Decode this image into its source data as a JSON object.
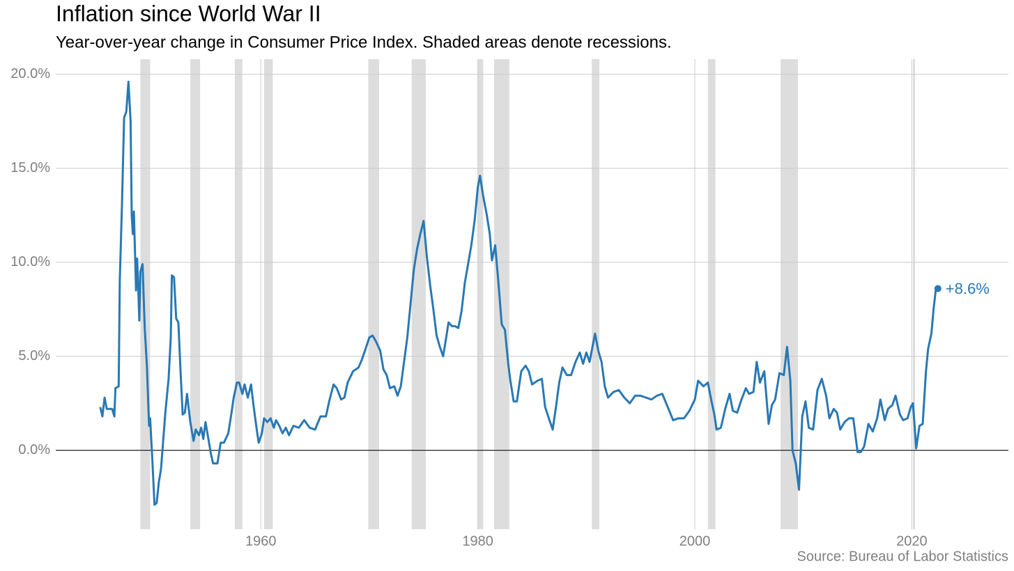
{
  "chart_data": {
    "type": "line",
    "title": "Inflation since World War II",
    "subtitle": "Year-over-year change in Consumer Price Index. Shaded areas denote recessions.",
    "source": "Source: Bureau of Labor Statistics",
    "annotation": "+8.6%",
    "color": "#2878b4",
    "recession_color": "#dddddd",
    "grid": true,
    "xlim": [
      1941.1,
      2028.9
    ],
    "ylim": [
      -4.2,
      20.8
    ],
    "xticks": [
      1960,
      1980,
      2000,
      2020
    ],
    "yticks": [
      {
        "value": 0,
        "label": "0.0%"
      },
      {
        "value": 5,
        "label": "5.0%"
      },
      {
        "value": 10,
        "label": "10.0%"
      },
      {
        "value": 15,
        "label": "15.0%"
      },
      {
        "value": 20,
        "label": "20.0%"
      }
    ],
    "recessions": [
      [
        1948.9,
        1949.8
      ],
      [
        1953.5,
        1954.4
      ],
      [
        1957.6,
        1958.3
      ],
      [
        1960.3,
        1961.1
      ],
      [
        1969.9,
        1970.9
      ],
      [
        1973.9,
        1975.2
      ],
      [
        1980.0,
        1980.5
      ],
      [
        1981.5,
        1982.9
      ],
      [
        1990.5,
        1991.2
      ],
      [
        2001.2,
        2001.9
      ],
      [
        2007.9,
        2009.5
      ],
      [
        2020.1,
        2020.3
      ]
    ],
    "x": [
      1945.2,
      1945.4,
      1945.6,
      1945.8,
      1946.0,
      1946.3,
      1946.5,
      1946.6,
      1946.9,
      1947.0,
      1947.2,
      1947.4,
      1947.6,
      1947.8,
      1948.0,
      1948.1,
      1948.2,
      1948.3,
      1948.5,
      1948.6,
      1948.7,
      1948.8,
      1948.9,
      1949.1,
      1949.3,
      1949.5,
      1949.7,
      1949.8,
      1950.0,
      1950.2,
      1950.4,
      1950.6,
      1950.8,
      1951.0,
      1951.2,
      1951.5,
      1951.7,
      1951.8,
      1952.0,
      1952.2,
      1952.4,
      1952.6,
      1952.8,
      1953.0,
      1953.2,
      1953.5,
      1953.8,
      1954.0,
      1954.3,
      1954.5,
      1954.7,
      1954.9,
      1955.2,
      1955.4,
      1955.6,
      1956.0,
      1956.3,
      1956.6,
      1957.0,
      1957.3,
      1957.5,
      1957.8,
      1958.0,
      1958.3,
      1958.5,
      1958.8,
      1959.1,
      1959.3,
      1959.6,
      1959.8,
      1960.1,
      1960.3,
      1960.6,
      1960.9,
      1961.2,
      1961.4,
      1961.7,
      1962.0,
      1962.3,
      1962.6,
      1963.0,
      1963.5,
      1964.0,
      1964.5,
      1965.0,
      1965.5,
      1966.0,
      1966.3,
      1966.7,
      1967.0,
      1967.4,
      1967.7,
      1968.0,
      1968.5,
      1969.0,
      1969.3,
      1969.6,
      1970.0,
      1970.3,
      1970.6,
      1971.0,
      1971.3,
      1971.6,
      1971.9,
      1972.3,
      1972.6,
      1972.9,
      1973.2,
      1973.5,
      1973.8,
      1974.1,
      1974.4,
      1974.7,
      1975.0,
      1975.3,
      1975.6,
      1975.9,
      1976.2,
      1976.5,
      1976.8,
      1977.0,
      1977.3,
      1977.6,
      1977.9,
      1978.2,
      1978.5,
      1978.8,
      1979.1,
      1979.4,
      1979.7,
      1980.0,
      1980.2,
      1980.5,
      1980.8,
      1981.1,
      1981.3,
      1981.6,
      1981.9,
      1982.2,
      1982.5,
      1982.8,
      1983.0,
      1983.3,
      1983.6,
      1984.0,
      1984.4,
      1984.7,
      1985.0,
      1985.5,
      1985.9,
      1986.2,
      1986.6,
      1986.9,
      1987.2,
      1987.5,
      1987.8,
      1988.2,
      1988.6,
      1989.0,
      1989.4,
      1989.7,
      1990.0,
      1990.3,
      1990.6,
      1990.8,
      1991.1,
      1991.4,
      1991.7,
      1992.0,
      1992.5,
      1993.0,
      1993.5,
      1994.0,
      1994.5,
      1995.0,
      1995.5,
      1996.0,
      1996.5,
      1997.0,
      1997.5,
      1998.0,
      1998.5,
      1999.0,
      1999.5,
      2000.0,
      2000.3,
      2000.8,
      2001.2,
      2001.5,
      2001.8,
      2002.0,
      2002.4,
      2002.8,
      2003.2,
      2003.5,
      2003.9,
      2004.3,
      2004.7,
      2005.0,
      2005.4,
      2005.7,
      2006.0,
      2006.4,
      2006.8,
      2007.1,
      2007.4,
      2007.8,
      2008.2,
      2008.5,
      2008.8,
      2009.0,
      2009.3,
      2009.6,
      2009.9,
      2010.2,
      2010.5,
      2010.9,
      2011.3,
      2011.7,
      2012.1,
      2012.4,
      2012.8,
      2013.1,
      2013.4,
      2013.8,
      2014.2,
      2014.6,
      2015.0,
      2015.3,
      2015.6,
      2016.0,
      2016.4,
      2016.8,
      2017.1,
      2017.5,
      2017.8,
      2018.2,
      2018.5,
      2018.9,
      2019.2,
      2019.6,
      2019.9,
      2020.1,
      2020.4,
      2020.7,
      2021.0,
      2021.3,
      2021.5,
      2021.8,
      2022.0,
      2022.2,
      2022.4
    ],
    "values": [
      2.3,
      1.8,
      2.8,
      2.2,
      2.2,
      2.2,
      1.8,
      3.3,
      3.4,
      9.0,
      13.0,
      17.7,
      18.0,
      19.6,
      17.5,
      12.5,
      11.5,
      12.7,
      8.5,
      10.2,
      8.7,
      6.9,
      9.5,
      9.9,
      6.5,
      4.5,
      1.3,
      1.7,
      -0.5,
      -2.9,
      -2.8,
      -1.7,
      -1.0,
      0.5,
      2.0,
      3.8,
      6.0,
      9.3,
      9.2,
      7.0,
      6.8,
      4.2,
      1.9,
      2.0,
      3.0,
      1.5,
      0.5,
      1.1,
      0.8,
      1.2,
      0.6,
      1.5,
      0.5,
      -0.2,
      -0.7,
      -0.7,
      0.4,
      0.4,
      0.9,
      2.0,
      2.8,
      3.6,
      3.6,
      3.0,
      3.5,
      2.8,
      3.5,
      2.5,
      1.2,
      0.4,
      0.9,
      1.7,
      1.5,
      1.7,
      1.2,
      1.6,
      1.3,
      0.9,
      1.2,
      0.8,
      1.3,
      1.2,
      1.6,
      1.2,
      1.1,
      1.8,
      1.8,
      2.6,
      3.5,
      3.3,
      2.7,
      2.8,
      3.6,
      4.2,
      4.4,
      4.8,
      5.3,
      6.0,
      6.1,
      5.8,
      5.3,
      4.3,
      4.0,
      3.3,
      3.4,
      2.9,
      3.4,
      4.7,
      6.0,
      7.8,
      9.6,
      10.7,
      11.5,
      12.2,
      10.3,
      8.8,
      7.5,
      6.1,
      5.5,
      5.0,
      5.7,
      6.8,
      6.6,
      6.6,
      6.5,
      7.4,
      8.9,
      9.9,
      10.9,
      12.2,
      14.0,
      14.6,
      13.5,
      12.6,
      11.5,
      10.1,
      10.9,
      8.9,
      6.7,
      6.4,
      4.6,
      3.7,
      2.6,
      2.6,
      4.2,
      4.5,
      4.2,
      3.5,
      3.7,
      3.8,
      2.3,
      1.6,
      1.1,
      2.3,
      3.6,
      4.4,
      4.0,
      4.0,
      4.7,
      5.2,
      4.6,
      5.2,
      4.7,
      5.6,
      6.2,
      5.3,
      4.7,
      3.4,
      2.8,
      3.1,
      3.2,
      2.8,
      2.5,
      2.9,
      2.9,
      2.8,
      2.7,
      2.9,
      3.0,
      2.3,
      1.6,
      1.7,
      1.7,
      2.1,
      2.7,
      3.7,
      3.4,
      3.6,
      2.7,
      1.9,
      1.1,
      1.2,
      2.2,
      3.0,
      2.1,
      2.0,
      2.7,
      3.3,
      3.0,
      3.1,
      4.7,
      3.6,
      4.2,
      1.4,
      2.4,
      2.7,
      4.1,
      4.0,
      5.5,
      3.7,
      0.0,
      -0.7,
      -2.1,
      1.8,
      2.6,
      1.2,
      1.1,
      3.2,
      3.8,
      2.9,
      1.7,
      2.2,
      2.0,
      1.1,
      1.5,
      1.7,
      1.7,
      -0.1,
      -0.1,
      0.2,
      1.4,
      1.0,
      1.7,
      2.7,
      1.6,
      2.2,
      2.4,
      2.9,
      1.9,
      1.6,
      1.7,
      2.3,
      2.5,
      0.1,
      1.3,
      1.4,
      4.2,
      5.4,
      6.2,
      7.5,
      8.5,
      8.6
    ]
  }
}
